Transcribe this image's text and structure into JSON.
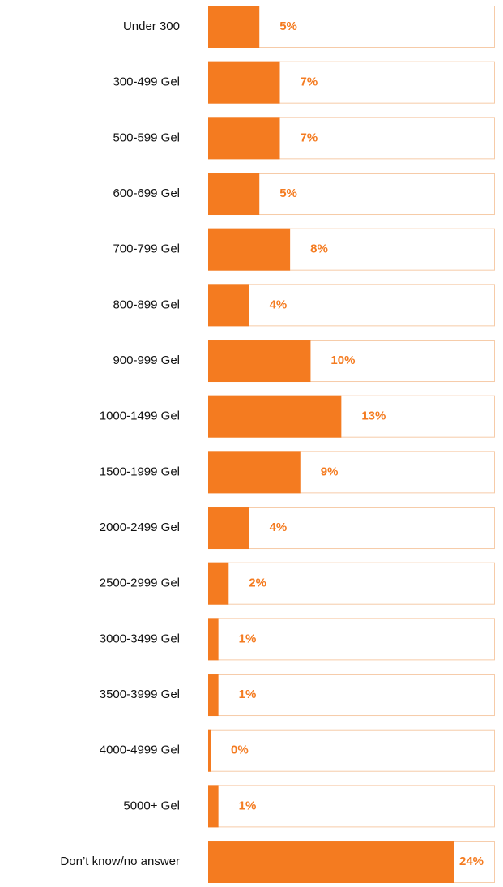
{
  "chart_data": {
    "type": "bar",
    "orientation": "horizontal",
    "categories": [
      "Under 300",
      "300-499 Gel",
      "500-599 Gel",
      "600-699 Gel",
      "700-799 Gel",
      "800-899 Gel",
      "900-999 Gel",
      "1000-1499 Gel",
      "1500-1999 Gel",
      "2000-2499 Gel",
      "2500-2999 Gel",
      "3000-3499 Gel",
      "3500-3999 Gel",
      "4000-4999 Gel",
      "5000+ Gel",
      "Don’t know/no answer"
    ],
    "values": [
      5,
      7,
      7,
      5,
      8,
      4,
      10,
      13,
      9,
      4,
      2,
      1,
      1,
      0,
      1,
      24
    ],
    "value_labels": [
      "5%",
      "7%",
      "7%",
      "5%",
      "8%",
      "4%",
      "10%",
      "13%",
      "9%",
      "4%",
      "2%",
      "1%",
      "1%",
      "0%",
      "1%",
      "24%"
    ],
    "color": "#f47b20",
    "xlim": [
      0,
      28
    ]
  }
}
